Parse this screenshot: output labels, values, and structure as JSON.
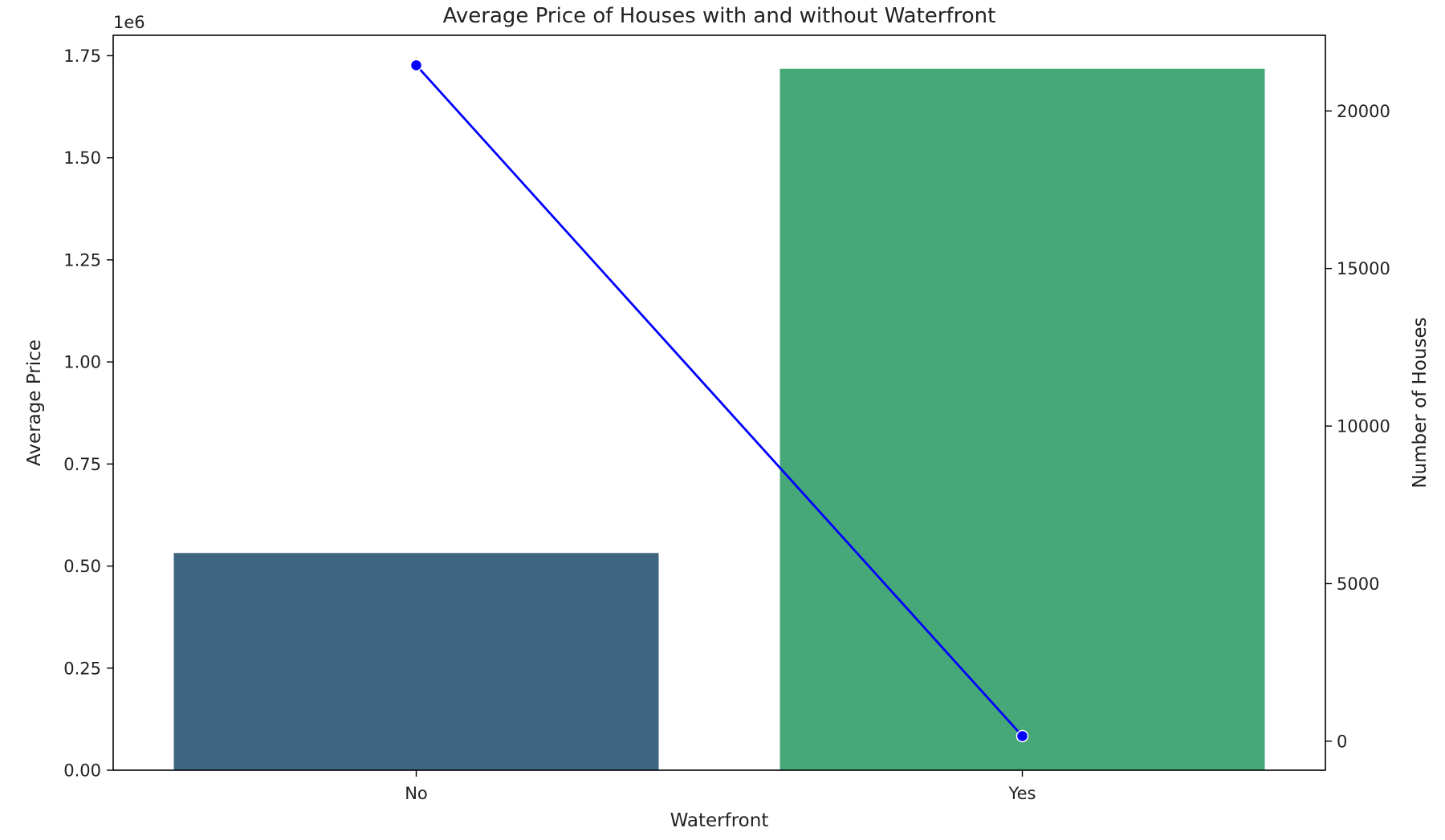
{
  "chart_data": {
    "type": "bar",
    "title": "Average Price of Houses with and without Waterfront",
    "xlabel": "Waterfront",
    "ylabel": "Average Price",
    "y2label": "Number of Houses",
    "y_offset_text": "1e6",
    "categories": [
      "No",
      "Yes"
    ],
    "ylim": [
      0,
      1.8
    ],
    "yticks": [
      "0.00",
      "0.25",
      "0.50",
      "0.75",
      "1.00",
      "1.25",
      "1.50",
      "1.75"
    ],
    "y2lim": [
      -920,
      22400
    ],
    "y2ticks": [
      "0",
      "5000",
      "10000",
      "15000",
      "20000"
    ],
    "grid": false,
    "series": [
      {
        "chart": "bar",
        "axis": "left",
        "values": [
          0.532,
          1.718
        ],
        "colors": [
          "#3e6680",
          "#46a779"
        ]
      },
      {
        "chart": "line",
        "axis": "right",
        "values": [
          21450,
          163
        ],
        "color": "#0000ff",
        "marker": "circle"
      }
    ]
  }
}
